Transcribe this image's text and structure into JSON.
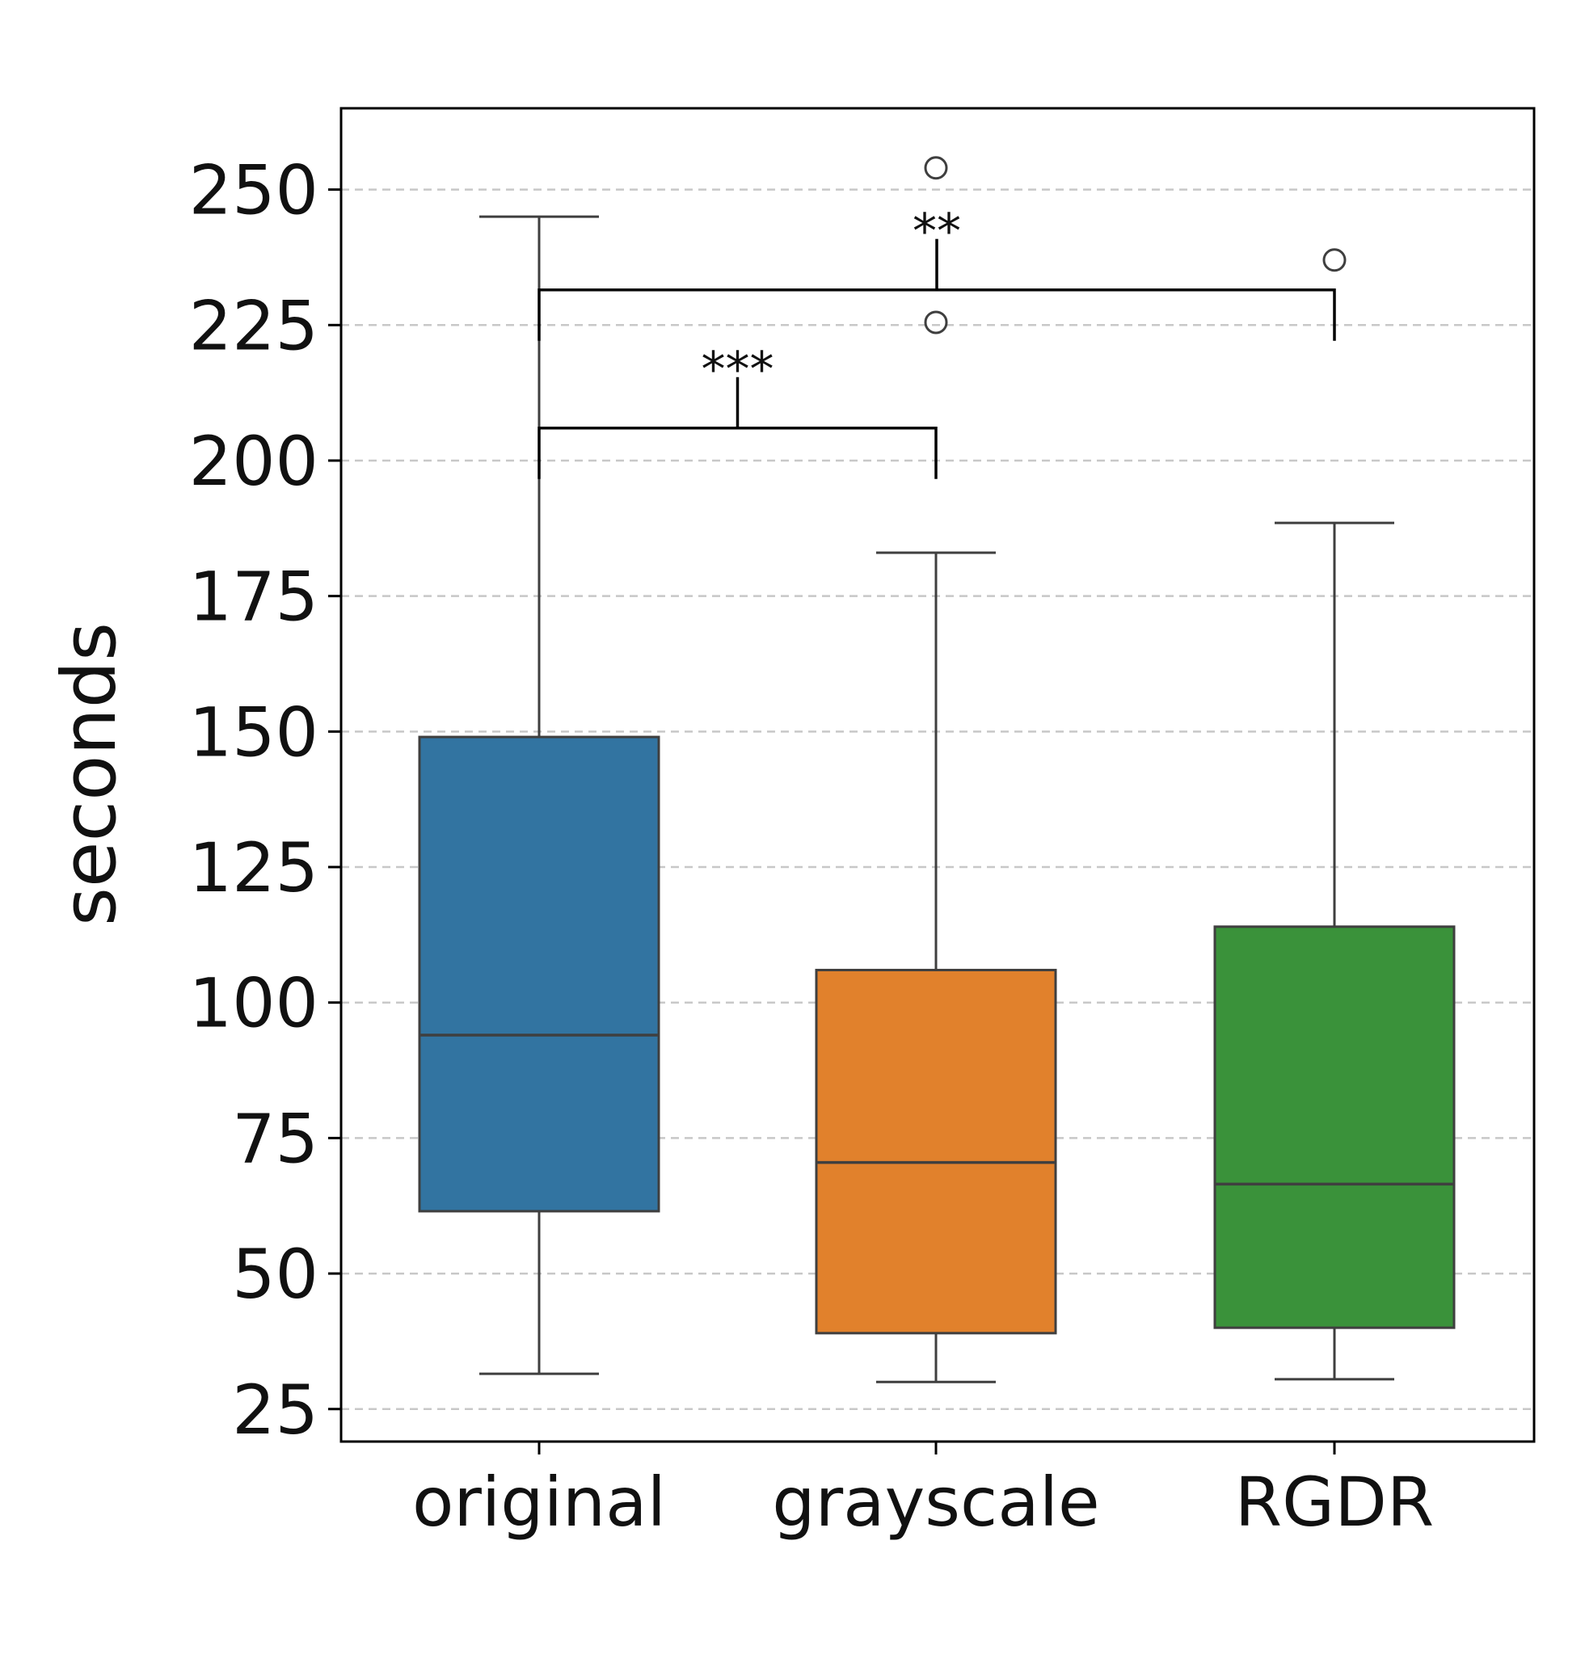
{
  "chart_data": {
    "type": "box",
    "title": "",
    "xlabel": "",
    "ylabel": "seconds",
    "ylim": [
      19,
      265
    ],
    "yticks": [
      25,
      50,
      75,
      100,
      125,
      150,
      175,
      200,
      225,
      250
    ],
    "ytick_labels": [
      "25",
      "50",
      "75",
      "100",
      "125",
      "150",
      "175",
      "200",
      "225",
      "250"
    ],
    "grid": "horizontal dashed",
    "categories": [
      "original",
      "grayscale",
      "RGDR"
    ],
    "series": [
      {
        "whisker_low": 31.5,
        "q1": 61.5,
        "median": 94,
        "q3": 149,
        "whisker_high": 245,
        "outliers": [],
        "color": "#3274a1"
      },
      {
        "whisker_low": 30,
        "q1": 39,
        "median": 70.5,
        "q3": 106,
        "whisker_high": 183,
        "outliers": [
          225.5,
          254
        ],
        "color": "#e1812c"
      },
      {
        "whisker_low": 30.5,
        "q1": 40,
        "median": 66.5,
        "q3": 114,
        "whisker_high": 188.5,
        "outliers": [
          237
        ],
        "color": "#3a923a"
      }
    ],
    "annotations": [
      {
        "from": "original",
        "to": "grayscale",
        "label": "***",
        "level": 206
      },
      {
        "from": "original",
        "to": "RGDR",
        "label": "**",
        "level": 231.5
      }
    ]
  }
}
